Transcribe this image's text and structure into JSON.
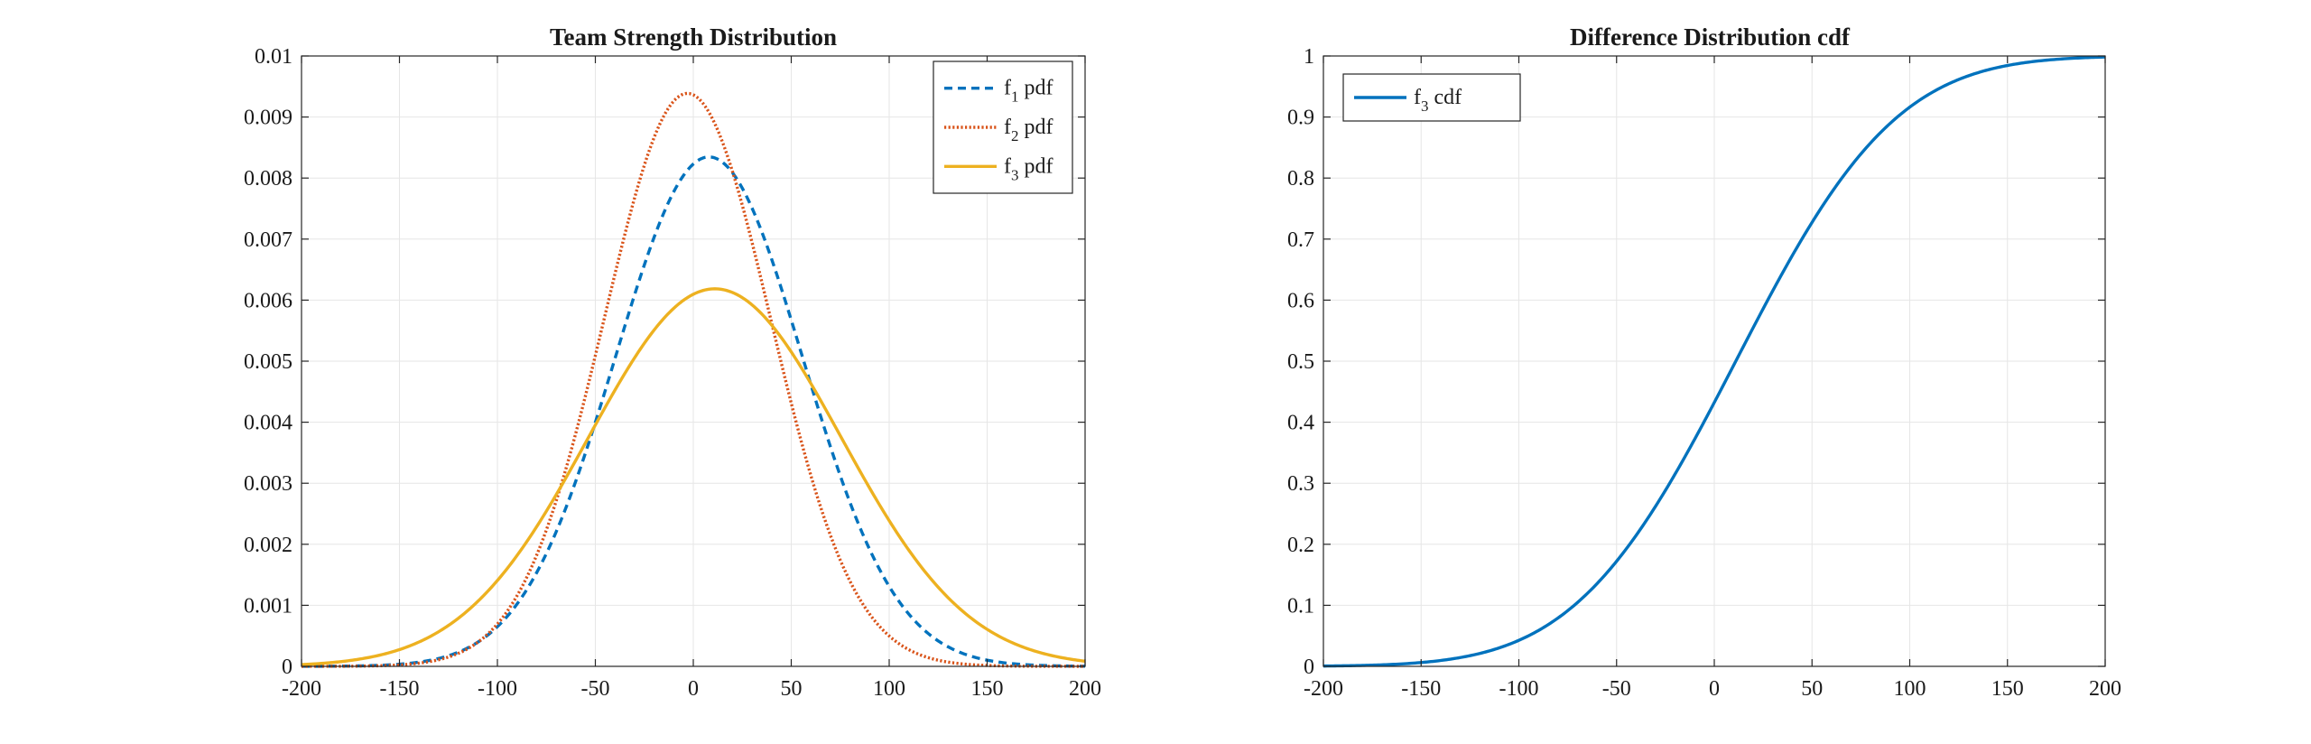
{
  "colors": {
    "f1": "#0072BD",
    "f2": "#D95319",
    "f3": "#EDB120",
    "cdf": "#0072BD",
    "axis": "#262626",
    "grid": "#e6e6e6"
  },
  "chart_data": [
    {
      "type": "line",
      "title": "Team Strength Distribution",
      "xlabel": "",
      "ylabel": "",
      "xlim": [
        -200,
        200
      ],
      "ylim": [
        0,
        0.01
      ],
      "grid": true,
      "legend_position": "top-right",
      "xticks": [
        "-200",
        "-150",
        "-100",
        "-50",
        "0",
        "50",
        "100",
        "150",
        "200"
      ],
      "yticks": [
        "0",
        "0.001",
        "0.002",
        "0.003",
        "0.004",
        "0.005",
        "0.006",
        "0.007",
        "0.008",
        "0.009",
        "0.01"
      ],
      "series": [
        {
          "name": "f1 pdf",
          "label_main": "f",
          "label_sub": "1",
          "label_rest": " pdf",
          "style": "dashed",
          "color": "#0072BD",
          "distribution": "normal",
          "mean": 8,
          "sd": 47.8
        },
        {
          "name": "f2 pdf",
          "label_main": "f",
          "label_sub": "2",
          "label_rest": " pdf",
          "style": "dotted",
          "color": "#D95319",
          "distribution": "normal",
          "mean": -3,
          "sd": 42.5
        },
        {
          "name": "f3 pdf",
          "label_main": "f",
          "label_sub": "3",
          "label_rest": " pdf",
          "style": "solid",
          "color": "#EDB120",
          "distribution": "normal",
          "mean": 11,
          "sd": 64.5
        }
      ]
    },
    {
      "type": "line",
      "title": "Difference Distribution cdf",
      "xlabel": "",
      "ylabel": "",
      "xlim": [
        -200,
        200
      ],
      "ylim": [
        0,
        1
      ],
      "grid": true,
      "legend_position": "top-left",
      "xticks": [
        "-200",
        "-150",
        "-100",
        "-50",
        "0",
        "50",
        "100",
        "150",
        "200"
      ],
      "yticks": [
        "0",
        "0.1",
        "0.2",
        "0.3",
        "0.4",
        "0.5",
        "0.6",
        "0.7",
        "0.8",
        "0.9",
        "1"
      ],
      "series": [
        {
          "name": "f3 cdf",
          "label_main": "f",
          "label_sub": "3",
          "label_rest": " cdf",
          "style": "solid",
          "color": "#0072BD",
          "distribution": "normal-cdf",
          "mean": 11,
          "sd": 64.5
        }
      ]
    }
  ]
}
